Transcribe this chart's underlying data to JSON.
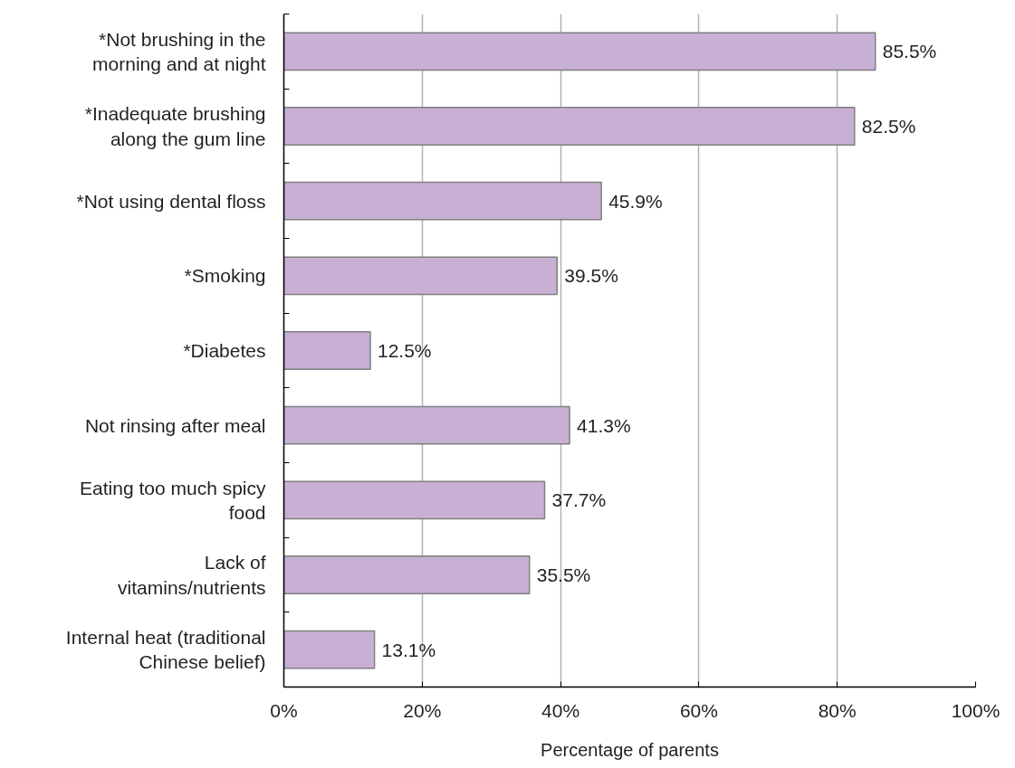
{
  "chart_data": {
    "type": "bar",
    "orientation": "horizontal",
    "xlabel": "Percentage of parents",
    "categories": [
      "*Not brushing in the\nmorning and at night",
      "*Inadequate brushing\nalong the gum line",
      "*Not using dental floss",
      "*Smoking",
      "*Diabetes",
      "Not rinsing after meal",
      "Eating too much spicy\nfood",
      "Lack of\nvitamins/nutrients",
      "Internal heat (traditional\nChinese belief)"
    ],
    "values": [
      85.5,
      82.5,
      45.9,
      39.5,
      12.5,
      41.3,
      37.7,
      35.5,
      13.1
    ],
    "value_labels": [
      "85.5%",
      "82.5%",
      "45.9%",
      "39.5%",
      "12.5%",
      "41.3%",
      "37.7%",
      "35.5%",
      "13.1%"
    ],
    "color": "#c8b0d5",
    "xlim": [
      0,
      100
    ],
    "xticks": [
      {
        "value": 0,
        "label": "0%"
      },
      {
        "value": 20,
        "label": "20%"
      },
      {
        "value": 40,
        "label": "40%"
      },
      {
        "value": 60,
        "label": "60%"
      },
      {
        "value": 80,
        "label": "80%"
      },
      {
        "value": 100,
        "label": "100%"
      }
    ],
    "grid": "x"
  }
}
